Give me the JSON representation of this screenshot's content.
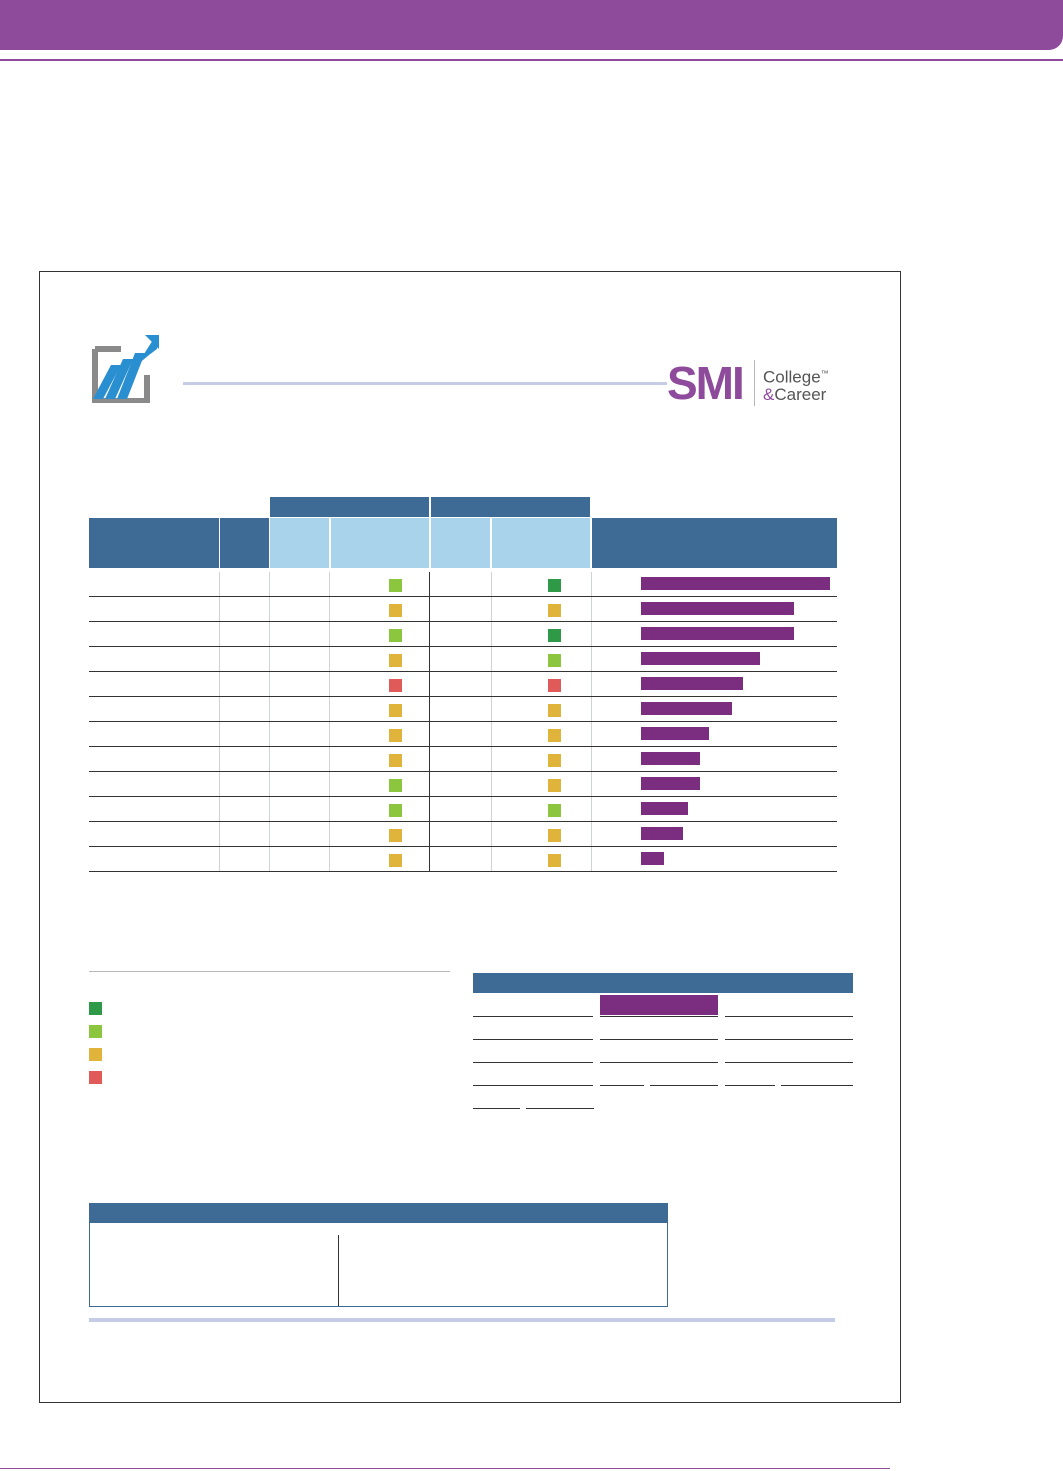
{
  "page": {
    "accent_color": "#8e4b9c",
    "table_header_color": "#3e6b96",
    "table_subheader_color": "#a8d3ea",
    "bar_color": "#7b2d80"
  },
  "brand": {
    "name": "SMI",
    "line1": "College",
    "trademark": "™",
    "amp": "&",
    "line2": "Career",
    "icon": "growth-chart-icon"
  },
  "status_colors": {
    "dark_green": "#2e9a47",
    "light_green": "#8cc63f",
    "yellow": "#e0b43a",
    "red": "#e05a5a"
  },
  "table_rows": [
    {
      "status_a": "light_green",
      "status_b": "dark_green",
      "bar_fraction": 1.0
    },
    {
      "status_a": "yellow",
      "status_b": "yellow",
      "bar_fraction": 0.81
    },
    {
      "status_a": "light_green",
      "status_b": "dark_green",
      "bar_fraction": 0.81
    },
    {
      "status_a": "yellow",
      "status_b": "light_green",
      "bar_fraction": 0.63
    },
    {
      "status_a": "red",
      "status_b": "red",
      "bar_fraction": 0.54
    },
    {
      "status_a": "yellow",
      "status_b": "yellow",
      "bar_fraction": 0.48
    },
    {
      "status_a": "yellow",
      "status_b": "yellow",
      "bar_fraction": 0.36
    },
    {
      "status_a": "yellow",
      "status_b": "yellow",
      "bar_fraction": 0.31
    },
    {
      "status_a": "light_green",
      "status_b": "yellow",
      "bar_fraction": 0.31
    },
    {
      "status_a": "light_green",
      "status_b": "light_green",
      "bar_fraction": 0.25
    },
    {
      "status_a": "yellow",
      "status_b": "yellow",
      "bar_fraction": 0.22
    },
    {
      "status_a": "yellow",
      "status_b": "yellow",
      "bar_fraction": 0.12
    }
  ],
  "legend": [
    "dark_green",
    "light_green",
    "yellow",
    "red"
  ]
}
